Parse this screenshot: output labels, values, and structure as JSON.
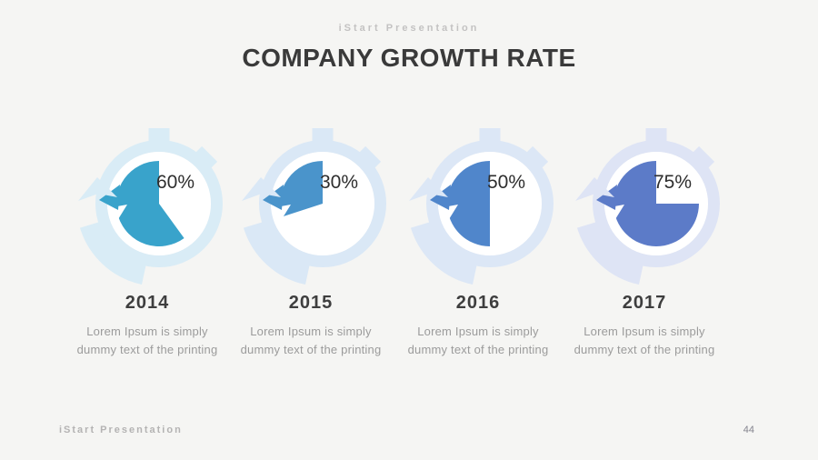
{
  "slide": {
    "kicker": "iStart Presentation",
    "title": "COMPANY GROWTH RATE",
    "footer_left": "iStart Presentation",
    "page_number": "44",
    "background": "#f5f5f3"
  },
  "chart_data": {
    "type": "pie",
    "title": "Company Growth Rate",
    "subtitle": "iStart Presentation",
    "categories": [
      "2014",
      "2015",
      "2016",
      "2017"
    ],
    "values": [
      60,
      30,
      50,
      75
    ],
    "unit": "%",
    "notes": "Four stopwatch-style pie gauges, each pie fills counterclockwise from 12 o'clock",
    "legend_position": "none",
    "grid": false
  },
  "gauges": [
    {
      "year": "2014",
      "percent": "60%",
      "value": 60,
      "pie_color": "#39a3cb",
      "ring_color": "#d9ecf6",
      "desc_line1": "Lorem Ipsum is simply",
      "desc_line2": "dummy text of the printing"
    },
    {
      "year": "2015",
      "percent": "30%",
      "value": 30,
      "pie_color": "#4a94cb",
      "ring_color": "#dae8f6",
      "desc_line1": "Lorem Ipsum is simply",
      "desc_line2": "dummy text of the printing"
    },
    {
      "year": "2016",
      "percent": "50%",
      "value": 50,
      "pie_color": "#5086cb",
      "ring_color": "#dce7f6",
      "desc_line1": "Lorem Ipsum is simply",
      "desc_line2": "dummy text of the printing"
    },
    {
      "year": "2017",
      "percent": "75%",
      "value": 75,
      "pie_color": "#5c7bc8",
      "ring_color": "#dee4f5",
      "desc_line1": "Lorem Ipsum is simply",
      "desc_line2": "dummy text of the printing"
    }
  ]
}
